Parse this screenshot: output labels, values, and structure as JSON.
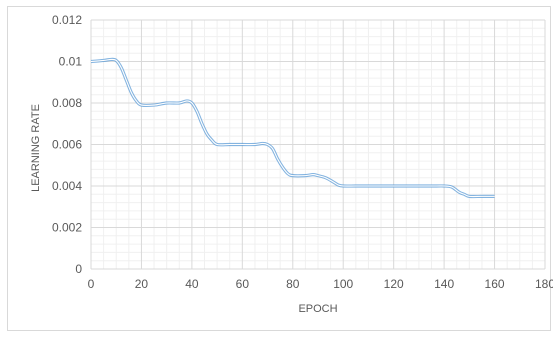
{
  "chart_data": {
    "type": "line",
    "xlabel": "EPOCH",
    "ylabel": "LEARNING RATE",
    "xlim": [
      0,
      180
    ],
    "ylim": [
      0,
      0.012
    ],
    "x_ticks": [
      "0",
      "20",
      "40",
      "60",
      "80",
      "100",
      "120",
      "140",
      "160",
      "180"
    ],
    "y_ticks": [
      "0",
      "0.002",
      "0.004",
      "0.006",
      "0.008",
      "0.01",
      "0.012"
    ],
    "grid": "major and minor",
    "legend": "none",
    "line_color": "#5b9bd5",
    "series": [
      {
        "x": [
          0,
          5,
          8,
          10,
          12,
          14,
          16,
          18,
          20,
          25,
          30,
          35,
          38,
          40,
          42,
          44,
          46,
          48,
          50,
          55,
          60,
          65,
          68,
          70,
          72,
          74,
          76,
          78,
          80,
          85,
          88,
          90,
          93,
          96,
          98,
          100,
          105,
          110,
          120,
          130,
          137,
          140,
          143,
          146,
          148,
          150,
          155,
          160
        ],
        "y": [
          0.01,
          0.01005,
          0.0101,
          0.01005,
          0.0097,
          0.0091,
          0.0085,
          0.0081,
          0.0079,
          0.0079,
          0.008,
          0.008,
          0.0081,
          0.008,
          0.0076,
          0.007,
          0.0065,
          0.0062,
          0.006,
          0.006,
          0.006,
          0.006,
          0.00605,
          0.006,
          0.0058,
          0.0053,
          0.0049,
          0.0046,
          0.0045,
          0.0045,
          0.00455,
          0.0045,
          0.0044,
          0.0042,
          0.00405,
          0.004,
          0.004,
          0.004,
          0.004,
          0.004,
          0.004,
          0.004,
          0.00395,
          0.0037,
          0.0036,
          0.0035,
          0.0035,
          0.0035
        ]
      }
    ]
  }
}
